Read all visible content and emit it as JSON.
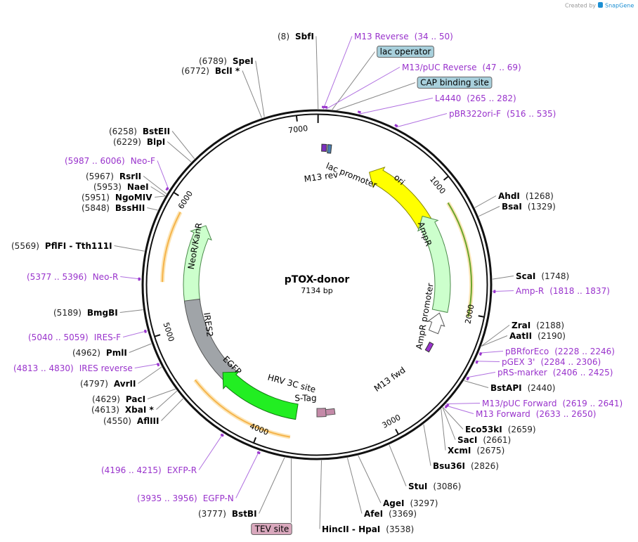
{
  "header": {
    "credit": "Created by",
    "brand": "SnapGene"
  },
  "map": {
    "name": "pTOX-donor",
    "length": "7134 bp",
    "ticks": [
      "1000",
      "2000",
      "3000",
      "4000",
      "5000",
      "6000",
      "7000"
    ]
  },
  "sites": [
    {
      "name": "SbfI",
      "position": "(8)"
    },
    {
      "name": "SpeI",
      "position": "(6789)"
    },
    {
      "name": "BclI *",
      "position": "(6772)"
    },
    {
      "name": "BstEII",
      "position": "(6258)"
    },
    {
      "name": "BlpI",
      "position": "(6229)"
    },
    {
      "name": "RsrII",
      "position": "(5967)"
    },
    {
      "name": "NaeI",
      "position": "(5953)"
    },
    {
      "name": "NgoMIV",
      "position": "(5951)"
    },
    {
      "name": "BssHII",
      "position": "(5848)"
    },
    {
      "name": "PflFI - Tth111I",
      "position": "(5569)"
    },
    {
      "name": "BmgBI",
      "position": "(5189)"
    },
    {
      "name": "PmlI",
      "position": "(4962)"
    },
    {
      "name": "AvrII",
      "position": "(4797)"
    },
    {
      "name": "PacI",
      "position": "(4629)"
    },
    {
      "name": "XbaI *",
      "position": "(4613)"
    },
    {
      "name": "AflIII",
      "position": "(4550)"
    },
    {
      "name": "BstBI",
      "position": "(3777)"
    },
    {
      "name": "HincII - HpaI",
      "position": "(3538)"
    },
    {
      "name": "AfeI",
      "position": "(3369)"
    },
    {
      "name": "AgeI",
      "position": "(3297)"
    },
    {
      "name": "StuI",
      "position": "(3086)"
    },
    {
      "name": "Bsu36I",
      "position": "(2826)"
    },
    {
      "name": "XcmI",
      "position": "(2675)"
    },
    {
      "name": "SacI",
      "position": "(2661)"
    },
    {
      "name": "Eco53kI",
      "position": "(2659)"
    },
    {
      "name": "BstAPI",
      "position": "(2440)"
    },
    {
      "name": "AatII",
      "position": "(2190)"
    },
    {
      "name": "ZraI",
      "position": "(2188)"
    },
    {
      "name": "ScaI",
      "position": "(1748)"
    },
    {
      "name": "BsaI",
      "position": "(1329)"
    },
    {
      "name": "AhdI",
      "position": "(1268)"
    }
  ],
  "primers": [
    {
      "name": "M13 Reverse",
      "range": "(34 .. 50)"
    },
    {
      "name": "M13/pUC Reverse",
      "range": "(47 .. 69)"
    },
    {
      "name": "L4440",
      "range": "(265 .. 282)"
    },
    {
      "name": "pBR322ori-F",
      "range": "(516 .. 535)"
    },
    {
      "name": "Amp-R",
      "range": "(1818 .. 1837)"
    },
    {
      "name": "pBRforEco",
      "range": "(2228 .. 2246)"
    },
    {
      "name": "pGEX 3'",
      "range": "(2284 .. 2306)"
    },
    {
      "name": "pRS-marker",
      "range": "(2406 .. 2425)"
    },
    {
      "name": "M13/pUC Forward",
      "range": "(2619 .. 2641)"
    },
    {
      "name": "M13 Forward",
      "range": "(2633 .. 2650)"
    },
    {
      "name": "EXFP-R",
      "range": "(4196 .. 4215)"
    },
    {
      "name": "EGFP-N",
      "range": "(3935 .. 3956)"
    },
    {
      "name": "IRES reverse",
      "range": "(4813 .. 4830)"
    },
    {
      "name": "IRES-F",
      "range": "(5040 .. 5059)"
    },
    {
      "name": "Neo-R",
      "range": "(5377 .. 5396)"
    },
    {
      "name": "Neo-F",
      "range": "(5987 .. 6006)"
    }
  ],
  "boxed_features": [
    "lac operator",
    "CAP binding site",
    "TEV site"
  ],
  "features": [
    "lac promoter",
    "M13 rev",
    "ori",
    "AmpR",
    "AmpR promoter",
    "M13 fwd",
    "NeoR/KanR",
    "IRES2",
    "EGFP",
    "HRV 3C site",
    "S-Tag"
  ]
}
